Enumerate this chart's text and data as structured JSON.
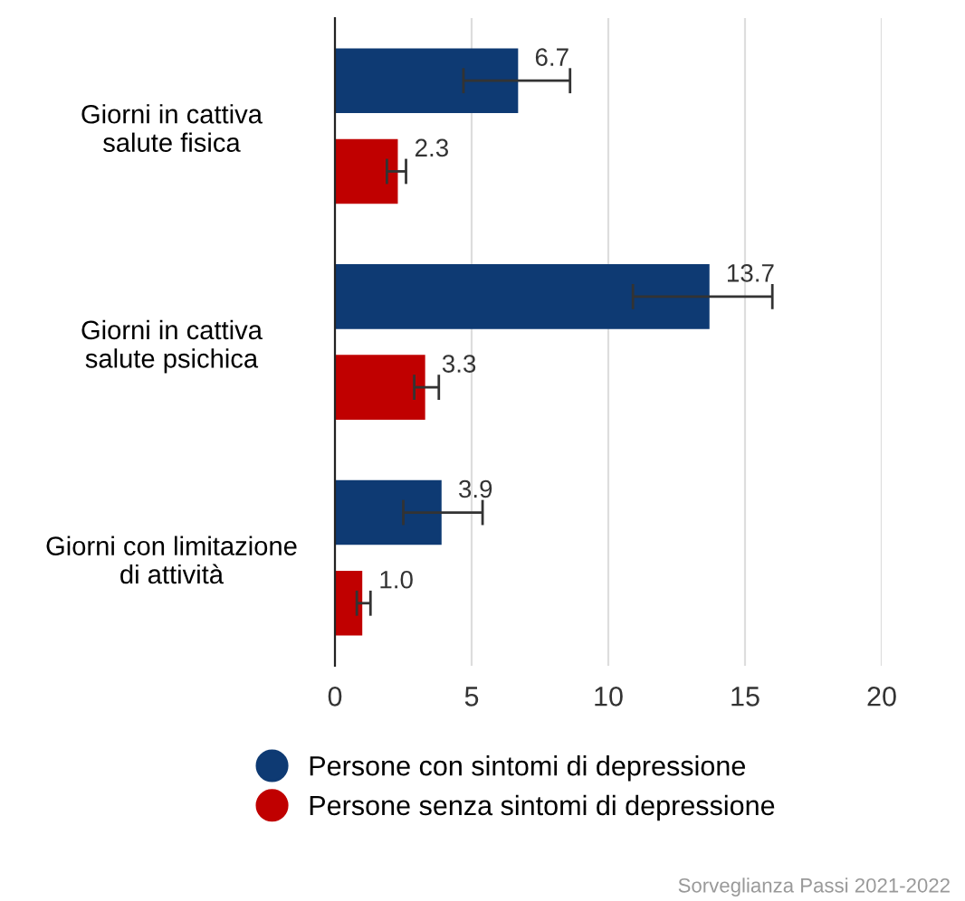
{
  "chart_data": {
    "type": "bar",
    "orientation": "horizontal",
    "categories": [
      "Giorni in cattiva\nsalute fisica",
      "Giorni in cattiva\nsalute psichica",
      "Giorni con limitazione\ndi attività"
    ],
    "series": [
      {
        "name": "Persone con sintomi di depressione",
        "color": "#0e3a73",
        "values": [
          6.7,
          13.7,
          3.9
        ],
        "value_labels": [
          "6.7",
          "13.7",
          "3.9"
        ],
        "errors": [
          [
            4.7,
            8.6
          ],
          [
            10.9,
            16.0
          ],
          [
            2.5,
            5.4
          ]
        ]
      },
      {
        "name": "Persone senza sintomi di depressione",
        "color": "#c00000",
        "values": [
          2.3,
          3.3,
          1.0
        ],
        "value_labels": [
          "2.3",
          "3.3",
          "1.0"
        ],
        "errors": [
          [
            1.9,
            2.6
          ],
          [
            2.9,
            3.8
          ],
          [
            0.8,
            1.3
          ]
        ]
      }
    ],
    "xlim": [
      0,
      20
    ],
    "xticks": [
      0,
      5,
      10,
      15,
      20
    ],
    "grid": "x",
    "legend": "bottom",
    "marker": "circle",
    "annotations": [
      "Sorveglianza Passi 2021-2022"
    ]
  }
}
